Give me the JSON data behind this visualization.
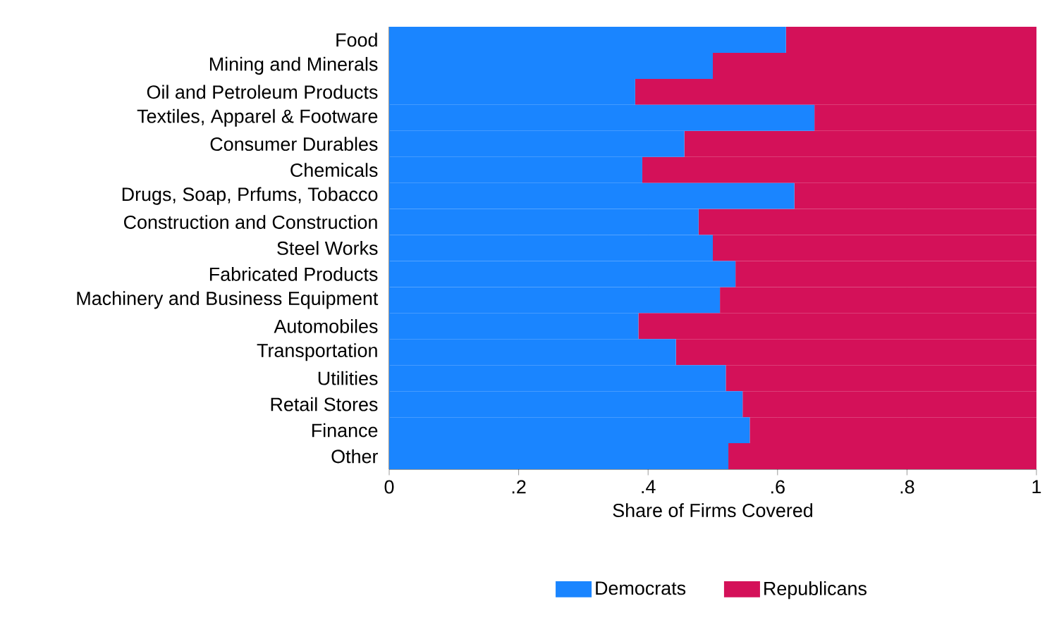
{
  "chart_data": {
    "type": "bar",
    "orientation": "horizontal",
    "stacked": true,
    "xlabel": "Share of Firms Covered",
    "categories": [
      "Food",
      "Mining and Minerals",
      "Oil and Petroleum Products",
      "Textiles, Apparel & Footware",
      "Consumer Durables",
      "Chemicals",
      "Drugs, Soap, Prfums, Tobacco",
      "Construction and Construction",
      "Steel Works",
      "Fabricated Products",
      "Machinery and Business Equipment",
      "Automobiles",
      "Transportation",
      "Utilities",
      "Retail Stores",
      "Finance",
      "Other"
    ],
    "series": [
      {
        "name": "Democrats",
        "color": "#1a85ff",
        "values": [
          0.613,
          0.5,
          0.38,
          0.657,
          0.456,
          0.391,
          0.626,
          0.478,
          0.5,
          0.535,
          0.511,
          0.385,
          0.443,
          0.52,
          0.546,
          0.557,
          0.524
        ]
      },
      {
        "name": "Republicans",
        "color": "#d41159",
        "values": [
          0.387,
          0.5,
          0.62,
          0.343,
          0.544,
          0.609,
          0.374,
          0.522,
          0.5,
          0.465,
          0.489,
          0.615,
          0.557,
          0.48,
          0.454,
          0.443,
          0.476
        ]
      }
    ],
    "xlim": [
      0,
      1
    ],
    "xticks": [
      {
        "value": 0,
        "label": "0"
      },
      {
        "value": 0.2,
        "label": ".2"
      },
      {
        "value": 0.4,
        "label": ".4"
      },
      {
        "value": 0.6,
        "label": ".6"
      },
      {
        "value": 0.8,
        "label": ".8"
      },
      {
        "value": 1,
        "label": "1"
      }
    ],
    "grid": "x",
    "legend": "bottom"
  }
}
